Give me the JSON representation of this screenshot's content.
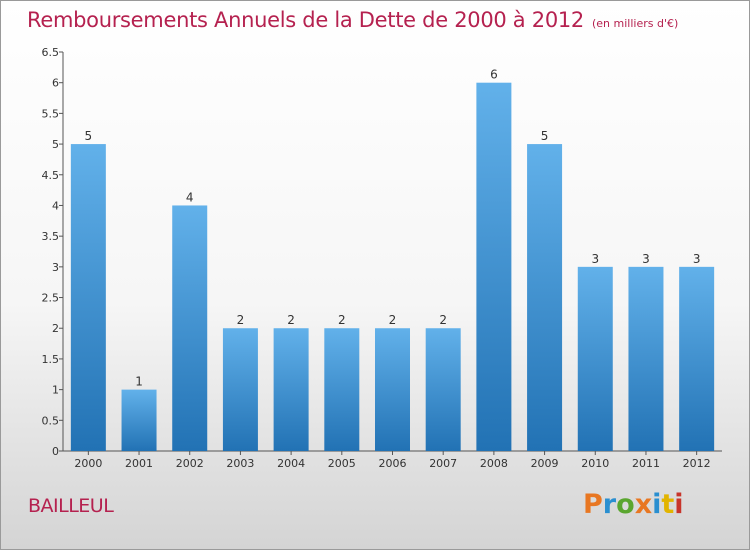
{
  "title": "Remboursements Annuels de la Dette de 2000 à 2012",
  "subtitle": "(en milliers d'€)",
  "commune": "BAILLEUL",
  "logo": {
    "text": "Proxiti",
    "colors": [
      "#e87722",
      "#2a8fd0",
      "#5aa62f",
      "#e87722",
      "#2a8fd0",
      "#e2b400",
      "#c8342a"
    ]
  },
  "colors": {
    "bar_top": "#62b1ea",
    "bar_bottom": "#2272b4",
    "title": "#b5214f"
  },
  "chart_data": {
    "type": "bar",
    "categories": [
      "2000",
      "2001",
      "2002",
      "2003",
      "2004",
      "2005",
      "2006",
      "2007",
      "2008",
      "2009",
      "2010",
      "2011",
      "2012"
    ],
    "values": [
      5,
      1,
      4,
      2,
      2,
      2,
      2,
      2,
      6,
      5,
      3,
      3,
      3
    ],
    "labels": [
      "5",
      "1",
      "4",
      "2",
      "2",
      "2",
      "2",
      "2",
      "6",
      "5",
      "3",
      "3",
      "3"
    ],
    "ylim": [
      0,
      6.5
    ],
    "yticks": [
      "0",
      "0.5",
      "1",
      "1.5",
      "2",
      "2.5",
      "3",
      "3.5",
      "4",
      "4.5",
      "5",
      "5.5",
      "6",
      "6.5"
    ],
    "grid": false,
    "title": "Remboursements Annuels de la Dette de 2000 à 2012",
    "xlabel": "",
    "ylabel": ""
  }
}
